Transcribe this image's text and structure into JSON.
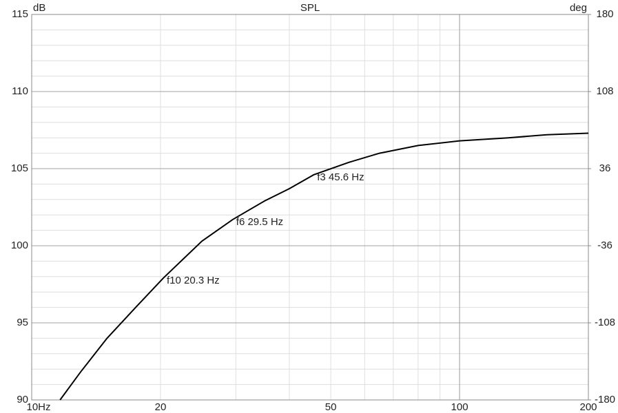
{
  "chart_data": {
    "type": "line",
    "title": "SPL",
    "y_label": "dB",
    "y2_label": "deg",
    "xscale": "log",
    "xlim": [
      10,
      200
    ],
    "xticks": [
      {
        "value": 10,
        "label": "10Hz"
      },
      20,
      50,
      100,
      200
    ],
    "xgrid_minor": [
      30,
      40,
      60,
      70,
      80,
      90
    ],
    "ylim": [
      90,
      115
    ],
    "yticks": [
      90,
      95,
      100,
      105,
      110,
      115
    ],
    "ygrid_minor": [
      91,
      92,
      93,
      94,
      96,
      97,
      98,
      99,
      101,
      102,
      103,
      104,
      106,
      107,
      108,
      109,
      111,
      112,
      113,
      114
    ],
    "y2lim": [
      -180,
      180
    ],
    "y2ticks": [
      -180,
      -108,
      -36,
      36,
      108,
      180
    ],
    "grid": true,
    "x": [
      11.65,
      13,
      15,
      17.5,
      20.3,
      25,
      29.5,
      35,
      40,
      45.6,
      55,
      65,
      80,
      100,
      130,
      160,
      200
    ],
    "series": [
      {
        "name": "SPL",
        "color": "#000000",
        "values": [
          90.0,
          91.8,
          94.0,
          96.0,
          97.9,
          100.3,
          101.7,
          102.9,
          103.7,
          104.6,
          105.4,
          106.0,
          106.5,
          106.8,
          107.0,
          107.2,
          107.3
        ]
      }
    ],
    "annotations": [
      {
        "text": "f10 20.3 Hz",
        "x": 20.3,
        "y": 97.9
      },
      {
        "text": "f6 29.5 Hz",
        "x": 29.5,
        "y": 101.7
      },
      {
        "text": "f3 45.6 Hz",
        "x": 45.6,
        "y": 104.6
      }
    ]
  }
}
